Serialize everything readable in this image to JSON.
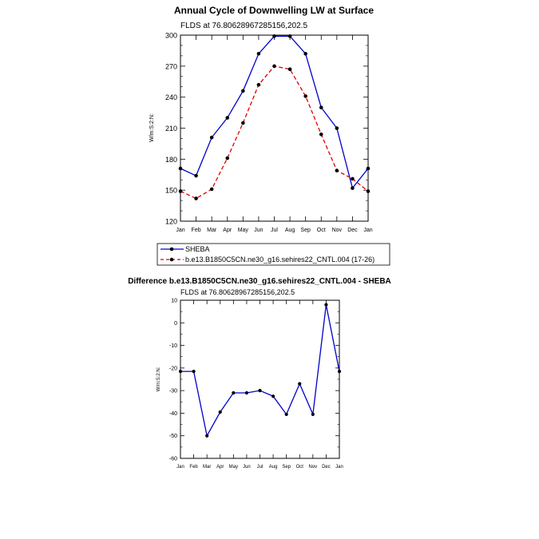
{
  "chart_data": [
    {
      "type": "line",
      "title": "Annual Cycle of Downwelling LW at Surface",
      "subtitle": "FLDS at 76.80628967285156,202.5",
      "xlabel": "",
      "ylabel": "W/m:S:2:N:",
      "categories": [
        "Jan",
        "Feb",
        "Mar",
        "Apr",
        "May",
        "Jun",
        "Jul",
        "Aug",
        "Sep",
        "Oct",
        "Nov",
        "Dec",
        "Jan"
      ],
      "ylim": [
        120,
        300
      ],
      "yticks": [
        120,
        150,
        180,
        210,
        240,
        270,
        300
      ],
      "series": [
        {
          "name": "SHEBA",
          "color": "#0000cc",
          "dash": "solid",
          "values": [
            171,
            164,
            201,
            220,
            246,
            282,
            299,
            299,
            282,
            230,
            210,
            152,
            171
          ]
        },
        {
          "name": "b.e13.B1850C5CN.ne30_g16.sehires22_CNTL.004 (17-26)",
          "color": "#e00000",
          "dash": "dashed",
          "values": [
            149,
            142,
            151,
            181,
            215,
            252,
            270,
            267,
            241,
            204,
            169,
            161,
            149
          ]
        }
      ],
      "legend": "below"
    },
    {
      "type": "line",
      "title": "Difference b.e13.B1850C5CN.ne30_g16.sehires22_CNTL.004 - SHEBA",
      "subtitle": "FLDS at 76.80628967285156,202.5",
      "xlabel": "",
      "ylabel": "W/m:S:2:N:",
      "categories": [
        "Jan",
        "Feb",
        "Mar",
        "Apr",
        "May",
        "Jun",
        "Jul",
        "Aug",
        "Sep",
        "Oct",
        "Nov",
        "Dec",
        "Jan"
      ],
      "ylim": [
        -60,
        10
      ],
      "yticks": [
        -60,
        -50,
        -40,
        -30,
        -20,
        -10,
        0,
        10
      ],
      "series": [
        {
          "name": "Difference",
          "color": "#0000cc",
          "dash": "solid",
          "values": [
            -21.5,
            -21.5,
            -50,
            -39.5,
            -31,
            -31,
            -30,
            -32.5,
            -40.5,
            -27,
            -40.5,
            8,
            -21.5
          ]
        }
      ]
    }
  ]
}
